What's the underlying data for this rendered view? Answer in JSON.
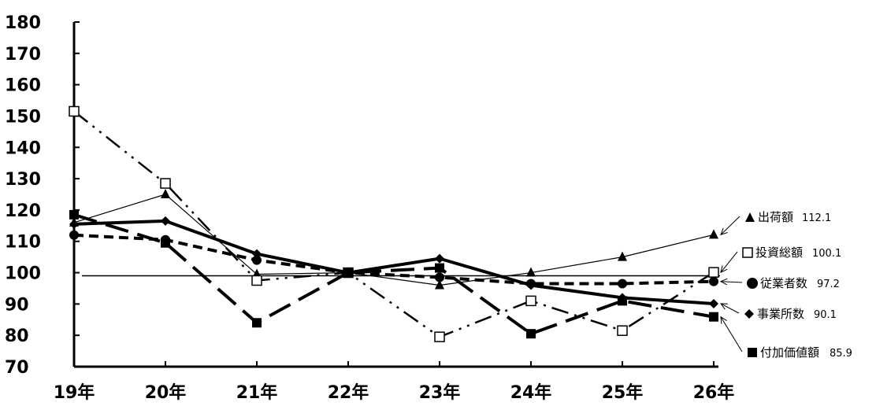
{
  "chart_data": {
    "type": "line",
    "categories": [
      "19年",
      "20年",
      "21年",
      "22年",
      "23年",
      "24年",
      "25年",
      "26年"
    ],
    "ylim": [
      70,
      180
    ],
    "yticks": [
      70,
      80,
      90,
      100,
      110,
      120,
      130,
      140,
      150,
      160,
      170,
      180
    ],
    "reference_line": 99,
    "series": [
      {
        "name": "出荷額",
        "end_value": "112.1",
        "marker": "triangle-filled",
        "line": "solid-thin",
        "color": "#000000",
        "values": [
          116,
          125,
          99.5,
          100,
          96,
          100,
          105,
          112.1
        ]
      },
      {
        "name": "投資総額",
        "end_value": "100.1",
        "marker": "square-open",
        "line": "dash-dot-dot",
        "color": "#000000",
        "values": [
          151.5,
          128.5,
          97.5,
          100,
          79.5,
          91,
          81.5,
          100.1
        ]
      },
      {
        "name": "従業者数",
        "end_value": "97.2",
        "marker": "circle-filled",
        "line": "short-dash",
        "color": "#000000",
        "values": [
          112,
          110.5,
          104,
          100,
          98.5,
          96.5,
          96.5,
          97.2
        ]
      },
      {
        "name": "事業所数",
        "end_value": "90.1",
        "marker": "diamond-filled",
        "line": "solid-thick",
        "color": "#000000",
        "values": [
          115.5,
          116.5,
          106,
          100,
          104.5,
          96,
          92,
          90.1
        ]
      },
      {
        "name": "付加価値額",
        "end_value": "85.9",
        "marker": "square-filled",
        "line": "long-dash",
        "color": "#000000",
        "values": [
          118.5,
          109.5,
          84,
          100,
          101.5,
          80.5,
          91,
          85.9
        ]
      }
    ]
  }
}
